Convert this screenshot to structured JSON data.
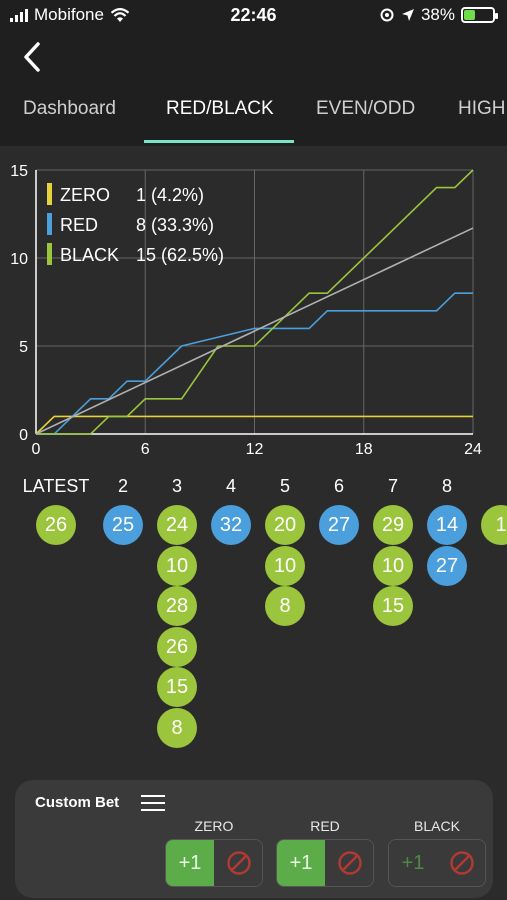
{
  "status_bar": {
    "carrier": "Mobifone",
    "time": "22:46",
    "battery": "38%",
    "battery_level": 0.38,
    "icons": [
      "wifi-icon",
      "location-lock-icon",
      "location-arrow-icon",
      "battery-charging-icon"
    ]
  },
  "nav": {
    "back_icon": "chevron-left-icon"
  },
  "tabs": [
    {
      "label": "Dashboard",
      "active": false
    },
    {
      "label": "RED/BLACK",
      "active": true
    },
    {
      "label": "EVEN/ODD",
      "active": false
    },
    {
      "label": "HIGH",
      "active": false
    }
  ],
  "colors": {
    "zero": "#e6d23a",
    "red": "#4a9fdc",
    "black": "#9bc53d",
    "trend": "#b0b0b0",
    "grid": "#666666",
    "tab_indicator": "#7de3c7",
    "bet_green": "#5cad4a"
  },
  "chart_data": {
    "type": "line",
    "xlim": [
      0,
      24
    ],
    "ylim": [
      0,
      15
    ],
    "x_ticks": [
      "0",
      "6",
      "12",
      "18",
      "24"
    ],
    "y_ticks": [
      "0",
      "5",
      "10",
      "15"
    ],
    "grid": true,
    "legend_position": "top-left",
    "legend": [
      {
        "name": "ZERO",
        "value": "1 (4.2%)",
        "color": "#e6d23a"
      },
      {
        "name": "RED",
        "value": "8 (33.3%)",
        "color": "#4a9fdc"
      },
      {
        "name": "BLACK",
        "value": "15 (62.5%)",
        "color": "#9bc53d"
      }
    ],
    "series": [
      {
        "name": "ZERO",
        "color": "#e6d23a",
        "points": [
          [
            0,
            0
          ],
          [
            1,
            1
          ],
          [
            24,
            1
          ]
        ]
      },
      {
        "name": "RED",
        "color": "#4a9fdc",
        "points": [
          [
            0,
            0
          ],
          [
            1,
            0
          ],
          [
            3,
            2
          ],
          [
            4,
            2
          ],
          [
            5,
            3
          ],
          [
            6,
            3
          ],
          [
            8,
            5
          ],
          [
            12,
            6
          ],
          [
            15,
            6
          ],
          [
            16,
            7
          ],
          [
            22,
            7
          ],
          [
            23,
            8
          ],
          [
            24,
            8
          ]
        ]
      },
      {
        "name": "BLACK",
        "color": "#9bc53d",
        "points": [
          [
            0,
            0
          ],
          [
            3,
            0
          ],
          [
            4,
            1
          ],
          [
            5,
            1
          ],
          [
            6,
            2
          ],
          [
            8,
            2
          ],
          [
            10,
            5
          ],
          [
            12,
            5
          ],
          [
            15,
            8
          ],
          [
            16,
            8
          ],
          [
            22,
            14
          ],
          [
            23,
            14
          ],
          [
            24,
            15
          ]
        ]
      },
      {
        "name": "",
        "color": "#b0b0b0",
        "points": [
          [
            0,
            0
          ],
          [
            24,
            11.7
          ]
        ]
      }
    ]
  },
  "history": {
    "columns": [
      {
        "header": "LATEST",
        "balls": [
          {
            "n": "26",
            "c": "black"
          }
        ]
      },
      {
        "header": "2",
        "balls": [
          {
            "n": "25",
            "c": "red"
          }
        ]
      },
      {
        "header": "3",
        "balls": [
          {
            "n": "24",
            "c": "black"
          },
          {
            "n": "10",
            "c": "black"
          },
          {
            "n": "28",
            "c": "black"
          },
          {
            "n": "26",
            "c": "black"
          },
          {
            "n": "15",
            "c": "black"
          },
          {
            "n": "8",
            "c": "black"
          }
        ]
      },
      {
        "header": "4",
        "balls": [
          {
            "n": "32",
            "c": "red"
          }
        ]
      },
      {
        "header": "5",
        "balls": [
          {
            "n": "20",
            "c": "black"
          },
          {
            "n": "10",
            "c": "black"
          },
          {
            "n": "8",
            "c": "black"
          }
        ]
      },
      {
        "header": "6",
        "balls": [
          {
            "n": "27",
            "c": "red"
          }
        ]
      },
      {
        "header": "7",
        "balls": [
          {
            "n": "29",
            "c": "black"
          },
          {
            "n": "10",
            "c": "black"
          },
          {
            "n": "15",
            "c": "black"
          }
        ]
      },
      {
        "header": "8",
        "balls": [
          {
            "n": "14",
            "c": "red"
          },
          {
            "n": "27",
            "c": "red"
          }
        ]
      },
      {
        "header": "",
        "balls": [
          {
            "n": "1",
            "c": "black"
          }
        ]
      }
    ]
  },
  "custom_bet": {
    "title": "Custom Bet",
    "menu_icon": "hamburger-menu-icon",
    "groups": [
      {
        "label": "ZERO",
        "plus": "+1",
        "enabled": true
      },
      {
        "label": "RED",
        "plus": "+1",
        "enabled": true
      },
      {
        "label": "BLACK",
        "plus": "+1",
        "enabled": false
      }
    ]
  }
}
